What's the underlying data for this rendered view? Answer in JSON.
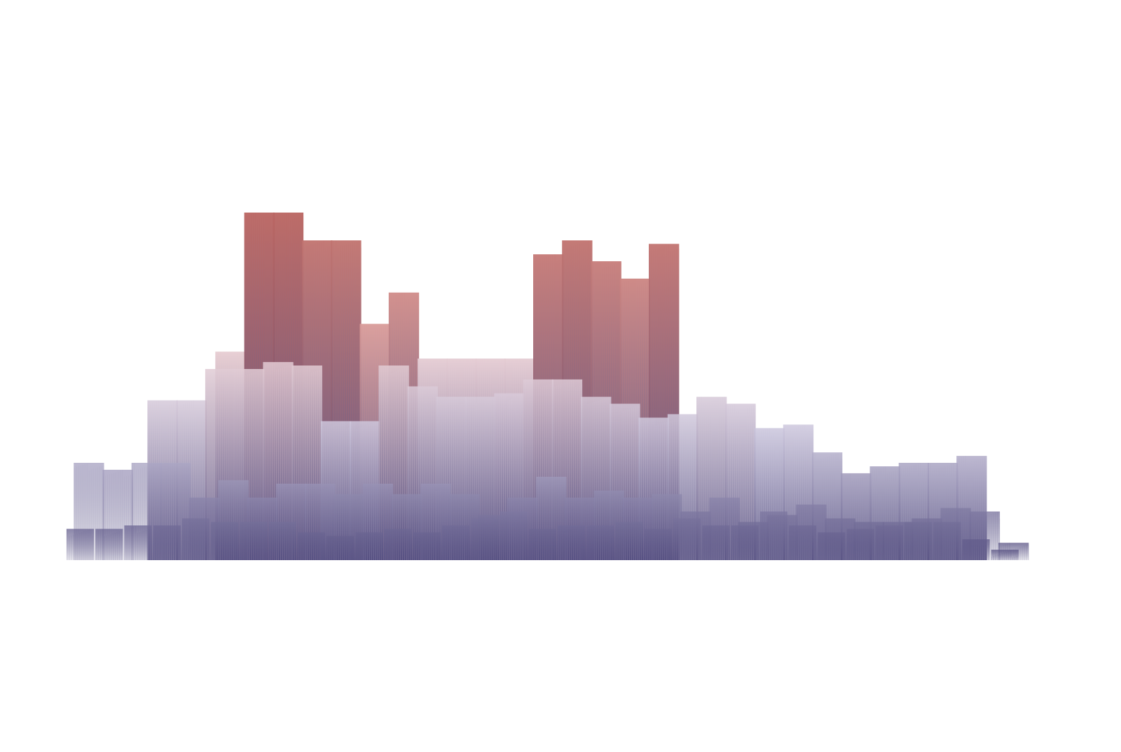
{
  "chart_data": {
    "type": "bar",
    "title": "",
    "xlabel": "",
    "ylabel": "",
    "grid": false,
    "legend": "none",
    "axes_visible": false,
    "color_scale": {
      "low": "#514b7e",
      "mid": "#ffffff",
      "high": "#b05450"
    },
    "ylim": [
      0,
      110
    ],
    "x_count": 33,
    "series": [
      {
        "layer": "back",
        "values": [
          0,
          0,
          0,
          0,
          0,
          60,
          100,
          100,
          92,
          92,
          68,
          77,
          58,
          58,
          58,
          58,
          0,
          0,
          0,
          0,
          0,
          0,
          0,
          0,
          0,
          0,
          0,
          0,
          0,
          0,
          0,
          0,
          0
        ]
      },
      {
        "layer": "back",
        "values": [
          0,
          0,
          0,
          0,
          0,
          0,
          0,
          0,
          0,
          0,
          0,
          0,
          0,
          0,
          0,
          0,
          88,
          92,
          86,
          81,
          91,
          0,
          0,
          0,
          0,
          0,
          0,
          0,
          0,
          0,
          0,
          0,
          0
        ]
      },
      {
        "layer": "mid",
        "values": [
          0,
          0,
          0,
          46,
          46,
          55,
          55,
          57,
          56,
          40,
          40,
          56,
          50,
          47,
          47,
          48,
          52,
          52,
          47,
          45,
          41,
          42,
          47,
          45,
          38,
          39,
          31,
          25,
          27,
          28,
          28,
          30,
          0
        ]
      },
      {
        "layer": "front",
        "values": [
          28,
          26,
          28,
          28,
          18,
          23,
          18,
          22,
          22,
          19,
          22,
          19,
          22,
          19,
          13,
          18,
          24,
          18,
          20,
          18,
          19,
          14,
          18,
          11,
          13,
          16,
          12,
          11,
          11,
          12,
          15,
          14,
          5
        ]
      },
      {
        "layer": "base",
        "values": [
          9,
          9,
          10,
          10,
          12,
          11,
          11,
          11,
          8,
          7,
          8,
          9,
          8,
          10,
          12,
          14,
          9,
          10,
          10,
          11,
          9,
          12,
          10,
          10,
          14,
          10,
          8,
          9,
          10,
          11,
          11,
          6,
          3
        ]
      }
    ]
  }
}
